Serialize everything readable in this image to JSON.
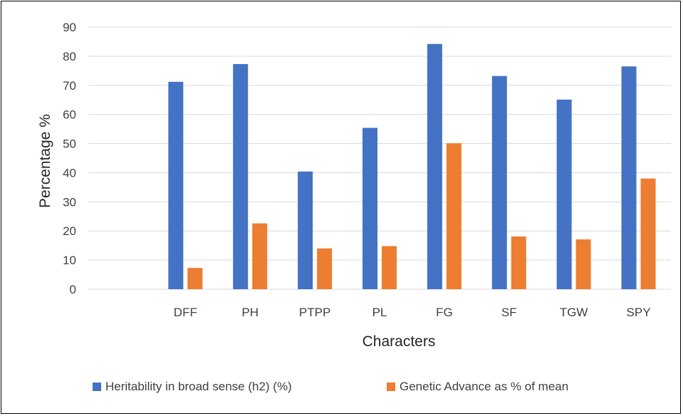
{
  "chart_data": {
    "type": "bar",
    "title": "",
    "xlabel": "Characters",
    "ylabel": "Percentage %",
    "ylim": [
      0,
      90
    ],
    "yticks": [
      0,
      10,
      20,
      30,
      40,
      50,
      60,
      70,
      80,
      90
    ],
    "grid": true,
    "legend_position": "bottom",
    "categories": [
      "",
      "DFF",
      "PH",
      "PTPP",
      "PL",
      "FG",
      "SF",
      "TGW",
      "SPY"
    ],
    "series": [
      {
        "name": "Heritability in broad sense (h2) (%)",
        "color": "#4472C4",
        "values": [
          null,
          71.2,
          77.3,
          40.4,
          55.4,
          84.2,
          73.2,
          65.1,
          76.5
        ]
      },
      {
        "name": "Genetic Advance as % of mean",
        "color": "#ED7D31",
        "values": [
          null,
          7.3,
          22.6,
          14.0,
          14.8,
          50.1,
          18.1,
          17.1,
          38.0
        ]
      }
    ]
  }
}
